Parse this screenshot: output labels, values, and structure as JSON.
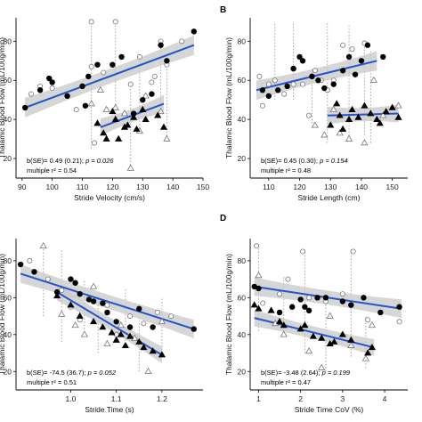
{
  "chart_data": [
    {
      "type": "scatter",
      "panel_label": "",
      "xlabel": "Stride Velocity (cm/s)",
      "ylabel": "Thalamic Blood Flow (mL/100g/min)",
      "xlim": [
        88,
        150
      ],
      "ylim": [
        10,
        92
      ],
      "xticks": [
        90,
        100,
        110,
        120,
        130,
        140,
        150
      ],
      "yticks": [
        20,
        40,
        60,
        80
      ],
      "regression_lines": [
        {
          "group": "circles",
          "x": [
            91,
            147
          ],
          "y": [
            46,
            78
          ],
          "band": 5
        },
        {
          "group": "triangles",
          "x": [
            116,
            137
          ],
          "y": [
            36,
            48
          ],
          "band": 4.5
        }
      ],
      "grey_lines": [
        {
          "x": 113,
          "y": [
            25,
            90
          ]
        },
        {
          "x": 121,
          "y": [
            38,
            90
          ]
        },
        {
          "x": 126,
          "y": [
            15,
            58
          ]
        },
        {
          "x": 129,
          "y": [
            34,
            72
          ]
        },
        {
          "x": 136,
          "y": [
            44,
            80
          ]
        },
        {
          "x": 138,
          "y": [
            30,
            68
          ]
        }
      ],
      "points_filled_circle": [
        [
          91,
          46
        ],
        [
          96,
          55
        ],
        [
          99,
          61
        ],
        [
          100,
          59
        ],
        [
          105,
          52
        ],
        [
          110,
          57
        ],
        [
          111,
          47
        ],
        [
          112,
          62
        ],
        [
          115,
          68
        ],
        [
          120,
          68
        ],
        [
          123,
          72
        ],
        [
          127,
          43
        ],
        [
          130,
          50
        ],
        [
          133,
          53
        ],
        [
          136,
          78
        ],
        [
          138,
          70
        ],
        [
          147,
          85
        ]
      ],
      "points_filled_triangle": [
        [
          115,
          38
        ],
        [
          117,
          33
        ],
        [
          118,
          30
        ],
        [
          120,
          44
        ],
        [
          121,
          40
        ],
        [
          122,
          30
        ],
        [
          124,
          36
        ],
        [
          125,
          37
        ],
        [
          127,
          41
        ],
        [
          128,
          35
        ],
        [
          130,
          45
        ],
        [
          131,
          40
        ],
        [
          135,
          42
        ],
        [
          137,
          36
        ]
      ],
      "points_open_circle": [
        [
          93,
          53
        ],
        [
          96,
          57
        ],
        [
          100,
          56
        ],
        [
          108,
          45
        ],
        [
          113,
          90
        ],
        [
          113,
          67
        ],
        [
          114,
          28
        ],
        [
          117,
          64
        ],
        [
          121,
          90
        ],
        [
          126,
          58
        ],
        [
          129,
          72
        ],
        [
          133,
          59
        ],
        [
          134,
          62
        ],
        [
          136,
          80
        ],
        [
          138,
          68
        ],
        [
          143,
          80
        ]
      ],
      "points_open_triangle": [
        [
          113,
          48
        ],
        [
          116,
          55
        ],
        [
          118,
          45
        ],
        [
          121,
          46
        ],
        [
          124,
          43
        ],
        [
          126,
          15
        ],
        [
          129,
          34
        ],
        [
          131,
          52
        ],
        [
          136,
          44
        ],
        [
          138,
          30
        ]
      ],
      "annotation_line1": "b(SE)= 0.49 (0.21); ",
      "annotation_p": "p = 0.026",
      "annotation_line2": "multiple r² = 0.54"
    },
    {
      "type": "scatter",
      "panel_label": "B",
      "xlabel": "Stride Length (cm)",
      "ylabel": "Thalamic Blood Flow (mL/100g/min)",
      "xlim": [
        104,
        155
      ],
      "ylim": [
        10,
        92
      ],
      "xticks": [
        110,
        120,
        130,
        140,
        150
      ],
      "yticks": [
        20,
        40,
        60,
        80
      ],
      "regression_lines": [
        {
          "group": "circles",
          "x": [
            106,
            145
          ],
          "y": [
            55,
            70
          ],
          "band": 5
        },
        {
          "group": "triangles",
          "x": [
            129,
            152
          ],
          "y": [
            42,
            43
          ],
          "band": 4.5
        }
      ],
      "grey_lines": [
        {
          "x": 112,
          "y": [
            50,
            90
          ]
        },
        {
          "x": 118,
          "y": [
            50,
            90
          ]
        },
        {
          "x": 124,
          "y": [
            38,
            66
          ]
        },
        {
          "x": 129,
          "y": [
            28,
            90
          ]
        },
        {
          "x": 136,
          "y": [
            30,
            88
          ]
        },
        {
          "x": 141,
          "y": [
            32,
            78
          ]
        },
        {
          "x": 143,
          "y": [
            28,
            75
          ]
        }
      ],
      "points_filled_circle": [
        [
          108,
          55
        ],
        [
          110,
          52
        ],
        [
          113,
          55
        ],
        [
          116,
          57
        ],
        [
          118,
          66
        ],
        [
          120,
          72
        ],
        [
          121,
          70
        ],
        [
          124,
          62
        ],
        [
          126,
          60
        ],
        [
          128,
          56
        ],
        [
          131,
          58
        ],
        [
          134,
          65
        ],
        [
          136,
          72
        ],
        [
          138,
          63
        ],
        [
          140,
          70
        ],
        [
          142,
          78
        ],
        [
          147,
          72
        ]
      ],
      "points_filled_triangle": [
        [
          130,
          37
        ],
        [
          132,
          48
        ],
        [
          133,
          42
        ],
        [
          134,
          35
        ],
        [
          136,
          40
        ],
        [
          137,
          45
        ],
        [
          139,
          41
        ],
        [
          141,
          47
        ],
        [
          143,
          43
        ],
        [
          145,
          40
        ],
        [
          146,
          38
        ],
        [
          148,
          44
        ],
        [
          150,
          46
        ],
        [
          152,
          41
        ]
      ],
      "points_open_circle": [
        [
          107,
          62
        ],
        [
          108,
          47
        ],
        [
          110,
          58
        ],
        [
          112,
          60
        ],
        [
          115,
          53
        ],
        [
          118,
          58
        ],
        [
          121,
          58
        ],
        [
          123,
          42
        ],
        [
          125,
          65
        ],
        [
          127,
          60
        ],
        [
          129,
          55
        ],
        [
          131,
          60
        ],
        [
          134,
          78
        ],
        [
          137,
          76
        ],
        [
          141,
          79
        ]
      ],
      "points_open_triangle": [
        [
          125,
          37
        ],
        [
          128,
          32
        ],
        [
          131,
          45
        ],
        [
          133,
          33
        ],
        [
          136,
          30
        ],
        [
          141,
          28
        ],
        [
          144,
          60
        ],
        [
          147,
          42
        ],
        [
          152,
          47
        ]
      ],
      "annotation_line1": "b(SE)= 0.45 (0.30); ",
      "annotation_p": "p = 0.154",
      "annotation_line2": "multiple r² = 0.48"
    },
    {
      "type": "scatter",
      "panel_label": "",
      "xlabel": "Stride Time (s)",
      "ylabel": "Thalamic Blood Flow (mL/100g/min)",
      "xlim": [
        0.88,
        1.29
      ],
      "ylim": [
        10,
        92
      ],
      "xticks": [
        1.0,
        1.1,
        1.2
      ],
      "xticklabels": [
        "1.0",
        "1.1",
        "1.2"
      ],
      "yticks": [
        20,
        40,
        60,
        80
      ],
      "regression_lines": [
        {
          "group": "circles",
          "x": [
            0.89,
            1.27
          ],
          "y": [
            73,
            43
          ],
          "band": 5
        },
        {
          "group": "triangles",
          "x": [
            0.97,
            1.2
          ],
          "y": [
            63,
            29
          ],
          "band": 4.5
        }
      ],
      "grey_lines": [
        {
          "x": 0.94,
          "y": [
            50,
            88
          ]
        },
        {
          "x": 0.98,
          "y": [
            36,
            86
          ]
        },
        {
          "x": 1.03,
          "y": [
            43,
            70
          ]
        },
        {
          "x": 1.06,
          "y": [
            30,
            62
          ]
        },
        {
          "x": 1.12,
          "y": [
            35,
            65
          ]
        },
        {
          "x": 1.15,
          "y": [
            20,
            50
          ]
        },
        {
          "x": 1.2,
          "y": [
            30,
            60
          ]
        }
      ],
      "points_filled_circle": [
        [
          0.89,
          78
        ],
        [
          0.92,
          74
        ],
        [
          0.97,
          63
        ],
        [
          1.0,
          70
        ],
        [
          1.01,
          68
        ],
        [
          1.02,
          62
        ],
        [
          1.04,
          59
        ],
        [
          1.05,
          58
        ],
        [
          1.07,
          57
        ],
        [
          1.08,
          52
        ],
        [
          1.1,
          47
        ],
        [
          1.13,
          44
        ],
        [
          1.15,
          54
        ],
        [
          1.18,
          44
        ],
        [
          1.27,
          43
        ]
      ],
      "points_filled_triangle": [
        [
          0.97,
          61
        ],
        [
          1.0,
          56
        ],
        [
          1.02,
          50
        ],
        [
          1.05,
          47
        ],
        [
          1.07,
          44
        ],
        [
          1.09,
          41
        ],
        [
          1.1,
          37
        ],
        [
          1.11,
          40
        ],
        [
          1.12,
          34
        ],
        [
          1.13,
          39
        ],
        [
          1.15,
          36
        ],
        [
          1.16,
          33
        ],
        [
          1.18,
          31
        ],
        [
          1.2,
          29
        ]
      ],
      "points_open_circle": [
        [
          0.91,
          80
        ],
        [
          0.95,
          70
        ],
        [
          0.98,
          64
        ],
        [
          1.0,
          55
        ],
        [
          1.02,
          48
        ],
        [
          1.05,
          58
        ],
        [
          1.08,
          56
        ],
        [
          1.1,
          40
        ],
        [
          1.13,
          50
        ],
        [
          1.16,
          46
        ],
        [
          1.19,
          52
        ],
        [
          1.22,
          50
        ]
      ],
      "points_open_triangle": [
        [
          0.94,
          88
        ],
        [
          0.98,
          51
        ],
        [
          1.01,
          45
        ],
        [
          1.03,
          40
        ],
        [
          1.05,
          66
        ],
        [
          1.08,
          35
        ],
        [
          1.11,
          45
        ],
        [
          1.14,
          38
        ],
        [
          1.17,
          20
        ],
        [
          1.2,
          47
        ]
      ],
      "annotation_line1": "b(SE)= -74.5 (36.7); ",
      "annotation_p": "p = 0.052",
      "annotation_line2": "multiple r² = 0.51"
    },
    {
      "type": "scatter",
      "panel_label": "D",
      "xlabel": "Stride Time CoV (%)",
      "ylabel": "Thalamic Blood Flow (mL/100g/min)",
      "xlim": [
        0.8,
        4.55
      ],
      "ylim": [
        10,
        92
      ],
      "xticks": [
        1,
        2,
        3,
        4
      ],
      "yticks": [
        20,
        40,
        60,
        80
      ],
      "regression_lines": [
        {
          "group": "circles",
          "x": [
            0.9,
            4.4
          ],
          "y": [
            66,
            54
          ],
          "band": 5
        },
        {
          "group": "triangles",
          "x": [
            0.9,
            3.75
          ],
          "y": [
            49,
            33
          ],
          "band": 4.5
        }
      ],
      "grey_lines": [
        {
          "x": 1.0,
          "y": [
            42,
            88
          ]
        },
        {
          "x": 1.6,
          "y": [
            40,
            72
          ]
        },
        {
          "x": 2.1,
          "y": [
            30,
            86
          ]
        },
        {
          "x": 2.6,
          "y": [
            20,
            64
          ]
        },
        {
          "x": 3.2,
          "y": [
            28,
            86
          ]
        },
        {
          "x": 3.55,
          "y": [
            22,
            50
          ]
        }
      ],
      "points_filled_circle": [
        [
          0.9,
          66
        ],
        [
          1.0,
          65
        ],
        [
          1.5,
          52
        ],
        [
          1.8,
          55
        ],
        [
          2.0,
          59
        ],
        [
          2.1,
          55
        ],
        [
          2.2,
          53
        ],
        [
          2.4,
          60
        ],
        [
          2.6,
          60
        ],
        [
          3.0,
          58
        ],
        [
          3.2,
          56
        ],
        [
          3.5,
          60
        ],
        [
          3.9,
          52
        ],
        [
          4.35,
          55
        ]
      ],
      "points_filled_triangle": [
        [
          0.9,
          56
        ],
        [
          1.0,
          54
        ],
        [
          1.3,
          53
        ],
        [
          1.5,
          47
        ],
        [
          1.6,
          45
        ],
        [
          2.0,
          43
        ],
        [
          2.1,
          45
        ],
        [
          2.3,
          39
        ],
        [
          2.5,
          38
        ],
        [
          2.7,
          35
        ],
        [
          2.8,
          36
        ],
        [
          3.0,
          40
        ],
        [
          3.2,
          37
        ],
        [
          3.6,
          30
        ],
        [
          3.7,
          33
        ]
      ],
      "points_open_circle": [
        [
          0.95,
          88
        ],
        [
          1.1,
          57
        ],
        [
          1.5,
          62
        ],
        [
          1.7,
          70
        ],
        [
          2.05,
          85
        ],
        [
          2.2,
          60
        ],
        [
          2.6,
          58
        ],
        [
          3.0,
          62
        ],
        [
          3.25,
          85
        ],
        [
          3.6,
          48
        ],
        [
          4.35,
          47
        ]
      ],
      "points_open_triangle": [
        [
          1.0,
          72
        ],
        [
          1.4,
          46
        ],
        [
          1.6,
          40
        ],
        [
          2.2,
          31
        ],
        [
          2.5,
          22
        ],
        [
          2.7,
          50
        ],
        [
          3.2,
          34
        ],
        [
          3.55,
          27
        ],
        [
          3.7,
          45
        ]
      ],
      "annotation_line1": "b(SE)= -3.48 (2.64); ",
      "annotation_p": "p = 0.199",
      "annotation_line2": "multiple r² = 0.47"
    }
  ]
}
